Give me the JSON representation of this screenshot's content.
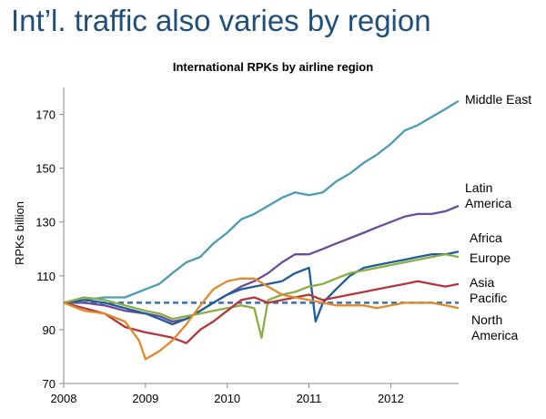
{
  "slide": {
    "title": "Int’l. traffic also varies by region"
  },
  "chart_data": {
    "type": "line",
    "title": "International RPKs by airline region",
    "xlabel": "",
    "ylabel": "RPKs billion",
    "xlim": [
      2008,
      2012.83
    ],
    "ylim": [
      70,
      180
    ],
    "x_ticks": [
      "2008",
      "2009",
      "2010",
      "2011",
      "2012"
    ],
    "y_ticks": [
      70,
      90,
      110,
      130,
      150,
      170
    ],
    "grid": false,
    "legend": "direct labels at right",
    "series": [
      {
        "name": "Middle East",
        "label_lines": [
          "Middle East"
        ],
        "color": "#4a9bb5",
        "x": [
          2008.0,
          2008.25,
          2008.5,
          2008.75,
          2009.0,
          2009.17,
          2009.33,
          2009.5,
          2009.67,
          2009.83,
          2010.0,
          2010.17,
          2010.33,
          2010.5,
          2010.67,
          2010.83,
          2011.0,
          2011.17,
          2011.33,
          2011.5,
          2011.67,
          2011.83,
          2012.0,
          2012.17,
          2012.33,
          2012.5,
          2012.67,
          2012.83
        ],
        "y": [
          100,
          101,
          102,
          102,
          105,
          107,
          111,
          115,
          117,
          122,
          126,
          131,
          133,
          136,
          139,
          141,
          140,
          141,
          145,
          148,
          152,
          155,
          159,
          164,
          166,
          169,
          172,
          175
        ]
      },
      {
        "name": "Latin America",
        "label_lines": [
          "Latin",
          "America"
        ],
        "color": "#6b4c9a",
        "x": [
          2008.0,
          2008.25,
          2008.5,
          2008.75,
          2009.0,
          2009.17,
          2009.33,
          2009.5,
          2009.67,
          2009.83,
          2010.0,
          2010.17,
          2010.33,
          2010.5,
          2010.67,
          2010.83,
          2011.0,
          2011.17,
          2011.33,
          2011.5,
          2011.67,
          2011.83,
          2012.0,
          2012.17,
          2012.33,
          2012.5,
          2012.67,
          2012.83
        ],
        "y": [
          100,
          100,
          99,
          97,
          96,
          95,
          93,
          94,
          97,
          100,
          103,
          106,
          108,
          111,
          115,
          118,
          118,
          120,
          122,
          124,
          126,
          128,
          130,
          132,
          133,
          133,
          134,
          136
        ]
      },
      {
        "name": "Africa",
        "label_lines": [
          "Africa"
        ],
        "color": "#1f5c99",
        "x": [
          2008.0,
          2008.25,
          2008.5,
          2008.75,
          2009.0,
          2009.17,
          2009.33,
          2009.5,
          2009.67,
          2009.83,
          2010.0,
          2010.17,
          2010.33,
          2010.5,
          2010.67,
          2010.83,
          2011.0,
          2011.08,
          2011.17,
          2011.33,
          2011.5,
          2011.67,
          2011.83,
          2012.0,
          2012.17,
          2012.33,
          2012.5,
          2012.67,
          2012.83
        ],
        "y": [
          100,
          101,
          100,
          98,
          96,
          94,
          92,
          94,
          97,
          100,
          103,
          105,
          106,
          107,
          108,
          111,
          113,
          93,
          100,
          105,
          110,
          113,
          114,
          115,
          116,
          117,
          118,
          118,
          119
        ]
      },
      {
        "name": "Europe",
        "label_lines": [
          "Europe"
        ],
        "color": "#8aae45",
        "x": [
          2008.0,
          2008.25,
          2008.5,
          2008.75,
          2009.0,
          2009.17,
          2009.33,
          2009.5,
          2009.67,
          2009.83,
          2010.0,
          2010.17,
          2010.33,
          2010.42,
          2010.5,
          2010.67,
          2010.83,
          2011.0,
          2011.17,
          2011.33,
          2011.5,
          2011.67,
          2011.83,
          2012.0,
          2012.17,
          2012.33,
          2012.5,
          2012.67,
          2012.83
        ],
        "y": [
          100,
          102,
          101,
          99,
          97,
          96,
          94,
          95,
          96,
          97,
          98,
          99,
          98,
          87,
          101,
          103,
          104,
          106,
          107,
          109,
          111,
          112,
          113,
          114,
          115,
          116,
          117,
          118,
          117
        ]
      },
      {
        "name": "Asia Pacific",
        "label_lines": [
          "Asia",
          "Pacific"
        ],
        "color": "#b5363a",
        "x": [
          2008.0,
          2008.25,
          2008.5,
          2008.75,
          2009.0,
          2009.17,
          2009.33,
          2009.5,
          2009.67,
          2009.83,
          2010.0,
          2010.17,
          2010.33,
          2010.5,
          2010.67,
          2010.83,
          2011.0,
          2011.17,
          2011.33,
          2011.5,
          2011.67,
          2011.83,
          2012.0,
          2012.17,
          2012.33,
          2012.5,
          2012.67,
          2012.83
        ],
        "y": [
          100,
          98,
          96,
          91,
          89,
          88,
          87,
          85,
          90,
          93,
          97,
          101,
          102,
          100,
          101,
          102,
          103,
          101,
          102,
          103,
          104,
          105,
          106,
          107,
          108,
          107,
          106,
          107
        ]
      },
      {
        "name": "North America",
        "label_lines": [
          "North",
          "America"
        ],
        "color": "#e08a2c",
        "x": [
          2008.0,
          2008.25,
          2008.5,
          2008.75,
          2008.92,
          2009.0,
          2009.17,
          2009.33,
          2009.5,
          2009.67,
          2009.83,
          2010.0,
          2010.17,
          2010.33,
          2010.5,
          2010.67,
          2010.83,
          2011.0,
          2011.17,
          2011.33,
          2011.5,
          2011.67,
          2011.83,
          2012.0,
          2012.17,
          2012.33,
          2012.5,
          2012.67,
          2012.83
        ],
        "y": [
          100,
          97,
          96,
          93,
          86,
          79,
          82,
          86,
          92,
          99,
          105,
          108,
          109,
          109,
          106,
          103,
          102,
          101,
          100,
          99,
          99,
          99,
          98,
          99,
          100,
          100,
          100,
          99,
          98
        ]
      }
    ]
  }
}
